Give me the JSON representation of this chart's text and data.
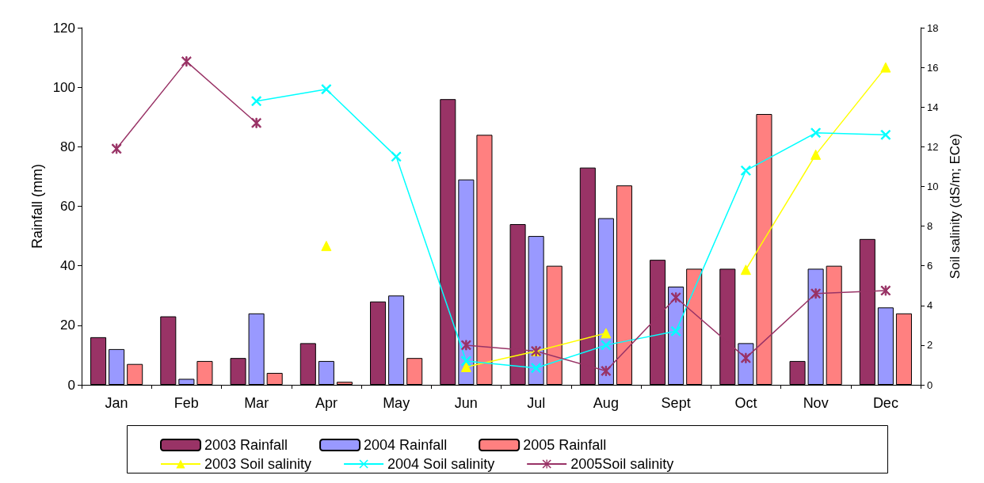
{
  "chart_data": {
    "type": "bar",
    "ylabel": "Rainfall (mm)",
    "y2label": "Soil salinity (dS/m; ECe)",
    "categories": [
      "Jan",
      "Feb",
      "Mar",
      "Apr",
      "May",
      "Jun",
      "Jul",
      "Aug",
      "Sept",
      "Oct",
      "Nov",
      "Dec"
    ],
    "ylim": [
      0,
      120
    ],
    "yticks": [
      0,
      20,
      40,
      60,
      80,
      100,
      120
    ],
    "y2lim": [
      0,
      18
    ],
    "y2ticks": [
      0,
      2,
      4,
      6,
      8,
      10,
      12,
      14,
      16,
      18
    ],
    "grid": false,
    "legend": "bottom",
    "series": [
      {
        "name": "2003 Rainfall",
        "color": "#993366",
        "values": [
          16,
          23,
          9,
          14,
          28,
          96,
          54,
          73,
          42,
          39,
          8,
          49
        ]
      },
      {
        "name": "2004 Rainfall",
        "color": "#9999ff",
        "values": [
          12,
          2,
          24,
          8,
          30,
          69,
          50,
          56,
          33,
          14,
          39,
          26
        ]
      },
      {
        "name": "2005 Rainfall",
        "color": "#ff8080",
        "values": [
          7,
          8,
          4,
          1,
          9,
          84,
          40,
          67,
          39,
          91,
          40,
          24
        ]
      },
      {
        "name": "2003 Soil salinity",
        "type": "line",
        "axis": "y2",
        "marker": "triangle",
        "color": "#ffff00",
        "values": [
          null,
          null,
          null,
          7.0,
          null,
          0.9,
          1.7,
          2.6,
          null,
          5.8,
          11.6,
          16.0
        ]
      },
      {
        "name": "2004 Soil salinity",
        "type": "line",
        "axis": "y2",
        "marker": "cross",
        "color": "#00ffff",
        "values": [
          null,
          null,
          14.3,
          14.9,
          11.5,
          1.2,
          0.85,
          2.0,
          2.7,
          10.8,
          12.7,
          12.6
        ]
      },
      {
        "name": "2005Soil salinity",
        "type": "line",
        "axis": "y2",
        "marker": "star",
        "color": "#993366",
        "values": [
          11.9,
          16.3,
          13.2,
          null,
          null,
          2.0,
          1.7,
          0.7,
          4.4,
          1.35,
          4.6,
          4.75
        ]
      }
    ]
  }
}
